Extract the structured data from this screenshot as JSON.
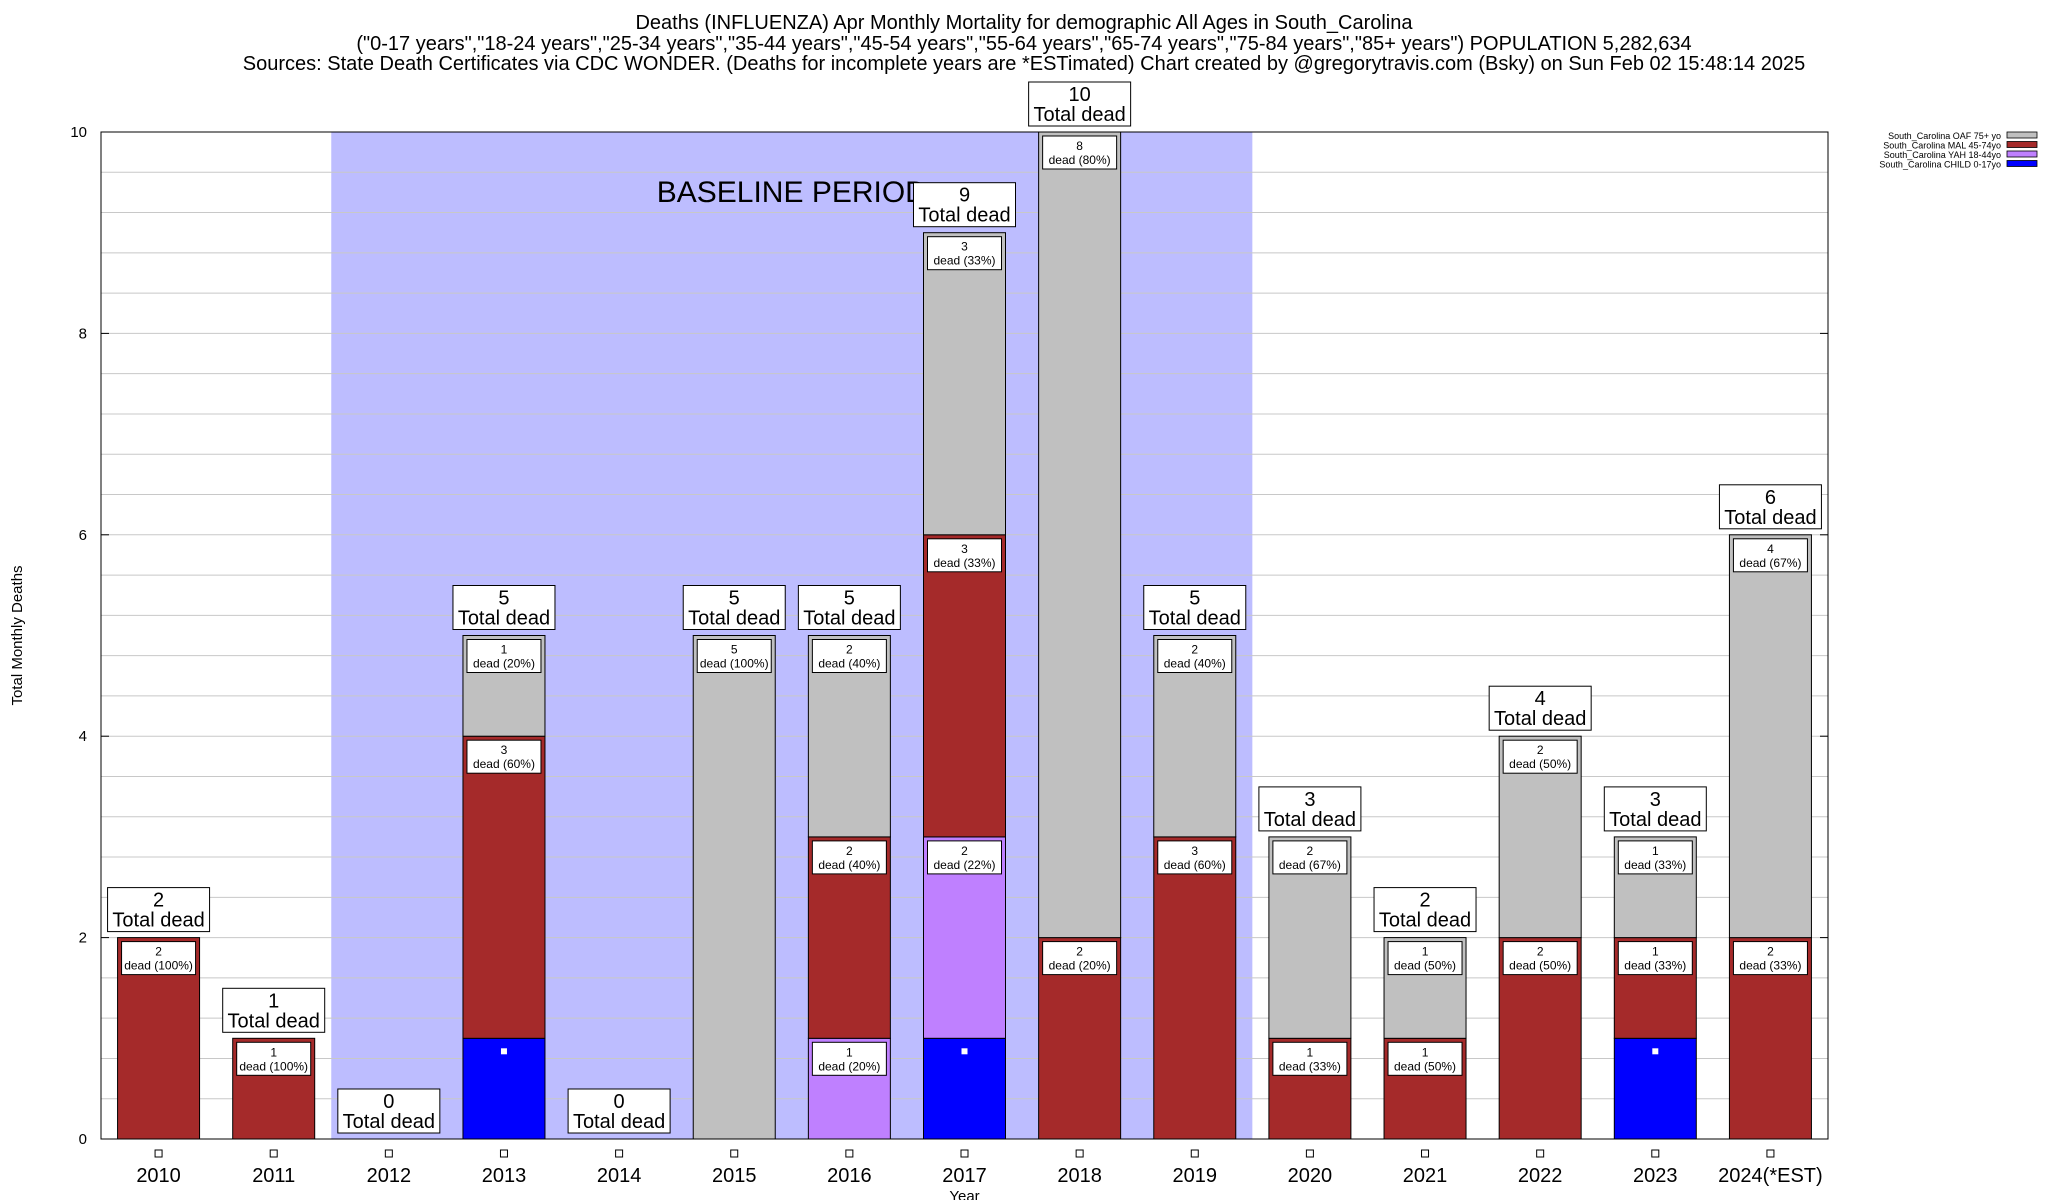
{
  "header": {
    "title": "Deaths (INFLUENZA) Apr Monthly Mortality for demographic All Ages in South_Carolina",
    "subtitle": "(\"0-17 years\",\"18-24 years\",\"25-34 years\",\"35-44 years\",\"45-54 years\",\"55-64 years\",\"65-74 years\",\"75-84 years\",\"85+ years\") POPULATION 5,282,634",
    "sources_line": "Sources: State Death Certificates via CDC WONDER. (Deaths for incomplete years are *ESTimated)              Chart created by @gregorytravis.com (Bsky) on Sun Feb 02 15:48:14 2025"
  },
  "chart_data": {
    "type": "bar",
    "stacked": true,
    "title": "Deaths (INFLUENZA) Apr Monthly Mortality for demographic All Ages in South_Carolina",
    "xlabel": "Year",
    "ylabel": "Total Monthly Deaths",
    "ylim": [
      0,
      10
    ],
    "yticks": [
      0,
      2,
      4,
      6,
      8,
      10
    ],
    "grid": true,
    "legend_position": "top-right",
    "categories": [
      "2010",
      "2011",
      "2012",
      "2013",
      "2014",
      "2015",
      "2016",
      "2017",
      "2018",
      "2019",
      "2020",
      "2021",
      "2022",
      "2023",
      "2024(*EST)"
    ],
    "totals": [
      2,
      1,
      0,
      5,
      0,
      5,
      5,
      9,
      10,
      5,
      3,
      2,
      4,
      3,
      6
    ],
    "total_label_suffix": "Total dead",
    "segment_label_word": "dead",
    "baseline_period": {
      "label": "BASELINE PERIOD",
      "from": "2012",
      "to": "2019",
      "color": "#bdbdff"
    },
    "series": [
      {
        "name": "South_Carolina CHILD 0-17yo",
        "color": "#0000ff",
        "values": [
          0,
          0,
          0,
          1,
          0,
          0,
          0,
          1,
          0,
          0,
          0,
          0,
          0,
          1,
          0
        ],
        "labels": [
          null,
          null,
          null,
          null,
          null,
          null,
          null,
          null,
          null,
          null,
          null,
          null,
          null,
          null,
          null
        ]
      },
      {
        "name": "South_Carolina YAH 18-44yo",
        "color": "#bf80ff",
        "values": [
          0,
          0,
          0,
          0,
          0,
          0,
          1,
          2,
          0,
          0,
          0,
          0,
          0,
          0,
          0
        ],
        "labels": [
          null,
          null,
          null,
          null,
          null,
          null,
          "(20%)",
          "(22%)",
          null,
          null,
          null,
          null,
          null,
          null,
          null
        ]
      },
      {
        "name": "South_Carolina MAL 45-74yo",
        "color": "#a52a2a",
        "values": [
          2,
          1,
          0,
          3,
          0,
          0,
          2,
          3,
          2,
          3,
          1,
          1,
          2,
          1,
          2
        ],
        "labels": [
          "(100%)",
          "(100%)",
          null,
          "(60%)",
          null,
          null,
          "(40%)",
          "(33%)",
          "(20%)",
          "(60%)",
          "(33%)",
          "(50%)",
          "(50%)",
          "(33%)",
          "(33%)"
        ]
      },
      {
        "name": "South_Carolina OAF 75+ yo",
        "color": "#c0c0c0",
        "values": [
          0,
          0,
          0,
          1,
          0,
          5,
          2,
          3,
          8,
          2,
          2,
          1,
          2,
          1,
          4
        ],
        "labels": [
          null,
          null,
          null,
          "(20%)",
          null,
          "(100%)",
          "(40%)",
          "(33%)",
          "(80%)",
          "(40%)",
          "(67%)",
          "(50%)",
          "(50%)",
          "(33%)",
          "(67%)"
        ]
      }
    ]
  }
}
